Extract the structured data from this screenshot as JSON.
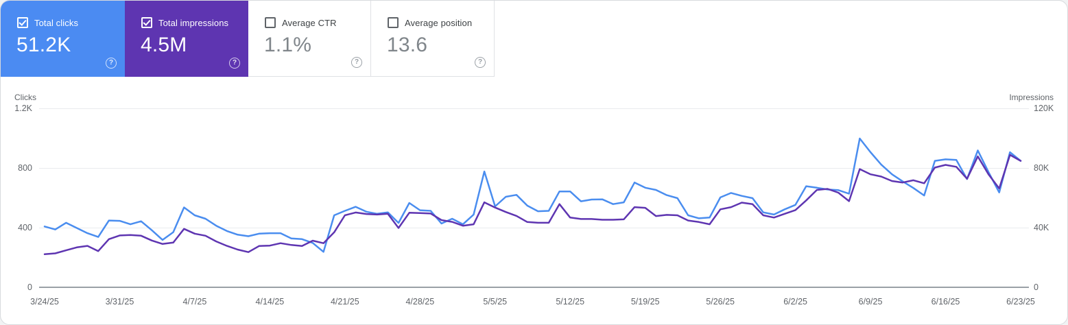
{
  "cards": [
    {
      "label": "Total clicks",
      "value": "51.2K",
      "checked": true,
      "color": "#4b8bf2",
      "help_icon": "?"
    },
    {
      "label": "Total impressions",
      "value": "4.5M",
      "checked": true,
      "color": "#5e35b1",
      "help_icon": "?"
    },
    {
      "label": "Average CTR",
      "value": "1.1%",
      "checked": false,
      "help_icon": "?"
    },
    {
      "label": "Average position",
      "value": "13.6",
      "checked": false,
      "help_icon": "?"
    }
  ],
  "chart_data": {
    "type": "line",
    "x_range": [
      "3/24/25",
      "6/23/25"
    ],
    "points_per_series": 92,
    "x_tick_labels": [
      "3/24/25",
      "3/31/25",
      "4/7/25",
      "4/14/25",
      "4/21/25",
      "4/28/25",
      "5/5/25",
      "5/12/25",
      "5/19/25",
      "5/26/25",
      "6/2/25",
      "6/9/25",
      "6/16/25",
      "6/23/25"
    ],
    "x_tick_indices": [
      0,
      7,
      14,
      21,
      28,
      35,
      42,
      49,
      56,
      63,
      70,
      77,
      84,
      91
    ],
    "y_left": {
      "title": "Clicks",
      "max": 1200,
      "ticks": [
        "1.2K",
        "800",
        "400",
        "0"
      ]
    },
    "y_right": {
      "title": "Impressions",
      "max": 120000,
      "ticks": [
        "120K",
        "80K",
        "40K",
        "0"
      ]
    },
    "grid": true,
    "series": [
      {
        "name": "Total clicks",
        "axis": "left",
        "color": "#4a8def",
        "values": [
          410,
          390,
          435,
          400,
          365,
          340,
          450,
          448,
          425,
          445,
          385,
          320,
          372,
          538,
          485,
          462,
          415,
          380,
          355,
          345,
          362,
          365,
          365,
          330,
          325,
          300,
          240,
          485,
          515,
          542,
          509,
          495,
          505,
          434,
          568,
          519,
          515,
          430,
          462,
          425,
          490,
          779,
          545,
          609,
          622,
          550,
          512,
          515,
          645,
          645,
          579,
          591,
          592,
          560,
          572,
          705,
          670,
          655,
          620,
          600,
          485,
          465,
          470,
          605,
          635,
          615,
          600,
          505,
          490,
          525,
          555,
          680,
          670,
          658,
          654,
          630,
          1000,
          908,
          825,
          760,
          712,
          668,
          618,
          850,
          860,
          856,
          728,
          920,
          775,
          638,
          908,
          850
        ]
      },
      {
        "name": "Total impressions",
        "axis": "right",
        "color": "#5e35b1",
        "values": [
          22400,
          23000,
          25000,
          27000,
          28000,
          24500,
          32500,
          35000,
          35300,
          34800,
          31600,
          29300,
          30200,
          39400,
          36200,
          34800,
          31000,
          28000,
          25500,
          23800,
          27900,
          28200,
          29800,
          28600,
          27900,
          31500,
          29800,
          37100,
          48500,
          50400,
          49400,
          49000,
          49500,
          40000,
          50200,
          50000,
          49700,
          45300,
          44100,
          41500,
          42500,
          57200,
          53700,
          50700,
          48100,
          44000,
          43500,
          43500,
          56000,
          47000,
          46000,
          46000,
          45500,
          45500,
          45800,
          54000,
          53500,
          48000,
          48800,
          48500,
          45000,
          44000,
          42500,
          52500,
          54000,
          57000,
          56000,
          48500,
          47000,
          49500,
          52000,
          58500,
          65500,
          66200,
          63700,
          58000,
          79500,
          76000,
          74500,
          71500,
          70500,
          72000,
          70000,
          80500,
          82300,
          81000,
          73000,
          88000,
          76000,
          66500,
          89000,
          85000
        ]
      }
    ]
  }
}
